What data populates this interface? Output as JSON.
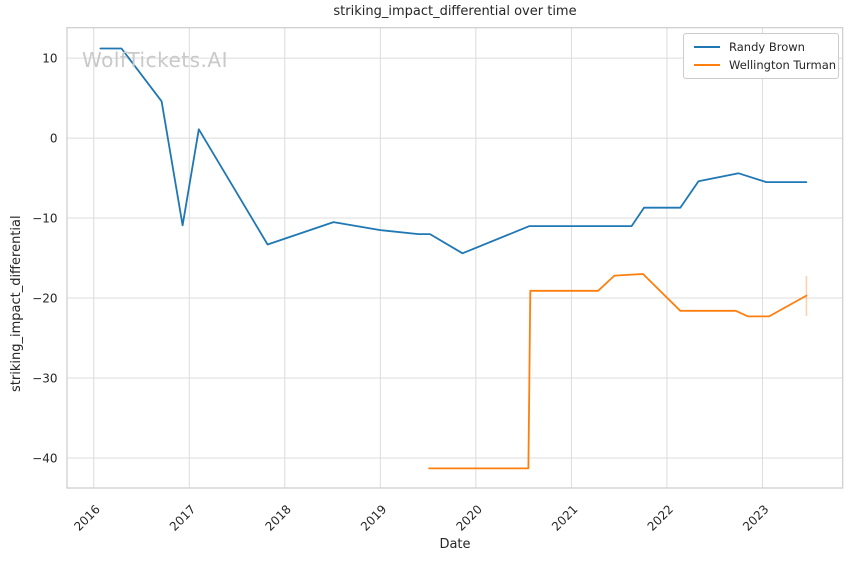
{
  "watermark": "WolfTickets.AI",
  "chart_data": {
    "type": "line",
    "title": "striking_impact_differential over time",
    "xlabel": "Date",
    "ylabel": "striking_impact_differential",
    "x_ticks": [
      2016,
      2017,
      2018,
      2019,
      2020,
      2021,
      2022,
      2023
    ],
    "y_ticks": [
      10,
      0,
      -10,
      -20,
      -30,
      -40
    ],
    "xlim": [
      2015.72,
      2023.84
    ],
    "ylim": [
      -43.75,
      13.8
    ],
    "grid": true,
    "legend_position": "upper right",
    "x_tick_rotation_deg": 45,
    "series": [
      {
        "name": "Randy Brown",
        "color": "#1f77b4",
        "points": [
          [
            2016.07,
            11.2
          ],
          [
            2016.29,
            11.2
          ],
          [
            2016.71,
            4.6
          ],
          [
            2016.93,
            -10.9
          ],
          [
            2017.1,
            1.1
          ],
          [
            2017.82,
            -13.3
          ],
          [
            2018.51,
            -10.5
          ],
          [
            2019.0,
            -11.5
          ],
          [
            2019.4,
            -12.0
          ],
          [
            2019.52,
            -12.0
          ],
          [
            2019.86,
            -14.4
          ],
          [
            2020.56,
            -11.0
          ],
          [
            2021.0,
            -11.0
          ],
          [
            2021.63,
            -11.0
          ],
          [
            2021.76,
            -8.7
          ],
          [
            2022.14,
            -8.7
          ],
          [
            2022.33,
            -5.4
          ],
          [
            2022.75,
            -4.4
          ],
          [
            2023.04,
            -5.5
          ],
          [
            2023.46,
            -5.5
          ]
        ]
      },
      {
        "name": "Wellington Turman",
        "color": "#ff7f0e",
        "points": [
          [
            2019.51,
            -41.3
          ],
          [
            2020.55,
            -41.3
          ],
          [
            2020.57,
            -19.1
          ],
          [
            2021.28,
            -19.1
          ],
          [
            2021.45,
            -17.2
          ],
          [
            2021.75,
            -17.0
          ],
          [
            2022.14,
            -21.6
          ],
          [
            2022.72,
            -21.6
          ],
          [
            2022.85,
            -22.3
          ],
          [
            2023.07,
            -22.3
          ],
          [
            2023.46,
            -19.7
          ]
        ]
      }
    ],
    "annotations": [
      {
        "type": "vline",
        "x": 2023.46,
        "y_from": -17.25,
        "y_to": -22.25,
        "color": "#ff7f0e",
        "opacity": 0.35
      }
    ]
  },
  "legend": {
    "items": [
      {
        "label": "Randy Brown",
        "color": "#1f77b4"
      },
      {
        "label": "Wellington Turman",
        "color": "#ff7f0e"
      }
    ]
  },
  "colors": {
    "grid": "#dcdcdc",
    "spine": "#cccccc",
    "text": "#262626",
    "background": "#ffffff"
  }
}
